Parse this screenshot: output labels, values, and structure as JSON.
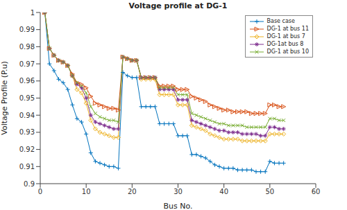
{
  "chart_data": {
    "type": "line",
    "title": "Voltage profile at DG-1",
    "x_label": "Bus No.",
    "y_label": "Voltage Profile (P.u)",
    "x": [
      1,
      2,
      3,
      4,
      5,
      6,
      7,
      8,
      9,
      10,
      11,
      12,
      13,
      14,
      15,
      16,
      17,
      18,
      19,
      20,
      21,
      22,
      23,
      24,
      25,
      26,
      27,
      28,
      29,
      30,
      31,
      32,
      33,
      34,
      35,
      36,
      37,
      38,
      39,
      40,
      41,
      42,
      43,
      44,
      45,
      46,
      47,
      48,
      49,
      50,
      51,
      52,
      53
    ],
    "xlim": [
      0,
      60
    ],
    "xticks": [
      0,
      10,
      20,
      30,
      40,
      50,
      60
    ],
    "ylim": [
      0.9,
      1
    ],
    "yticks": [
      0.9,
      0.91,
      0.92,
      0.93,
      0.94,
      0.95,
      0.96,
      0.97,
      0.98,
      0.99,
      1
    ],
    "grid": false,
    "legend": "upper right",
    "series": [
      {
        "name": "Base case",
        "color": "#0072BD",
        "marker": "plus",
        "values": [
          1.0,
          0.97,
          0.966,
          0.961,
          0.959,
          0.955,
          0.946,
          0.938,
          0.936,
          0.929,
          0.918,
          0.913,
          0.912,
          0.911,
          0.91,
          0.91,
          0.909,
          0.965,
          0.963,
          0.962,
          0.962,
          0.945,
          0.945,
          0.945,
          0.945,
          0.935,
          0.935,
          0.935,
          0.935,
          0.928,
          0.928,
          0.928,
          0.917,
          0.917,
          0.916,
          0.915,
          0.913,
          0.911,
          0.91,
          0.909,
          0.909,
          0.909,
          0.908,
          0.908,
          0.908,
          0.908,
          0.907,
          0.907,
          0.907,
          0.913,
          0.912,
          0.912,
          0.912
        ]
      },
      {
        "name": "DG-1 at bus 11",
        "color": "#D95319",
        "marker": "triangle",
        "values": [
          1.0,
          0.979,
          0.975,
          0.972,
          0.971,
          0.969,
          0.964,
          0.959,
          0.958,
          0.956,
          0.951,
          0.947,
          0.946,
          0.945,
          0.944,
          0.944,
          0.943,
          0.974,
          0.973,
          0.972,
          0.972,
          0.962,
          0.962,
          0.962,
          0.962,
          0.957,
          0.957,
          0.957,
          0.957,
          0.955,
          0.955,
          0.955,
          0.951,
          0.95,
          0.949,
          0.948,
          0.946,
          0.945,
          0.944,
          0.943,
          0.943,
          0.942,
          0.942,
          0.942,
          0.942,
          0.941,
          0.941,
          0.941,
          0.941,
          0.946,
          0.946,
          0.945,
          0.945
        ]
      },
      {
        "name": "DG-1 at bus 7",
        "color": "#EDB120",
        "marker": "diamond",
        "values": [
          1.0,
          0.979,
          0.975,
          0.972,
          0.971,
          0.969,
          0.963,
          0.955,
          0.953,
          0.947,
          0.937,
          0.932,
          0.93,
          0.929,
          0.928,
          0.927,
          0.927,
          0.974,
          0.973,
          0.972,
          0.972,
          0.961,
          0.961,
          0.961,
          0.961,
          0.952,
          0.952,
          0.952,
          0.952,
          0.946,
          0.946,
          0.946,
          0.934,
          0.933,
          0.932,
          0.931,
          0.929,
          0.928,
          0.927,
          0.926,
          0.926,
          0.926,
          0.926,
          0.925,
          0.925,
          0.925,
          0.925,
          0.925,
          0.925,
          0.929,
          0.929,
          0.929,
          0.929
        ]
      },
      {
        "name": "DG-1at bus 8",
        "color": "#7E2F8E",
        "marker": "star",
        "values": [
          1.0,
          0.979,
          0.975,
          0.972,
          0.971,
          0.969,
          0.963,
          0.958,
          0.956,
          0.95,
          0.94,
          0.936,
          0.935,
          0.934,
          0.933,
          0.932,
          0.932,
          0.974,
          0.973,
          0.972,
          0.972,
          0.962,
          0.962,
          0.962,
          0.962,
          0.955,
          0.955,
          0.955,
          0.955,
          0.949,
          0.949,
          0.949,
          0.937,
          0.936,
          0.935,
          0.934,
          0.933,
          0.932,
          0.931,
          0.931,
          0.93,
          0.93,
          0.93,
          0.929,
          0.929,
          0.929,
          0.929,
          0.928,
          0.928,
          0.933,
          0.933,
          0.932,
          0.932
        ]
      },
      {
        "name": "DG-1 at bus 10",
        "color": "#77AC30",
        "marker": "x",
        "values": [
          1.0,
          0.979,
          0.975,
          0.972,
          0.971,
          0.969,
          0.963,
          0.959,
          0.957,
          0.953,
          0.945,
          0.941,
          0.939,
          0.938,
          0.937,
          0.937,
          0.936,
          0.974,
          0.973,
          0.972,
          0.972,
          0.962,
          0.962,
          0.962,
          0.962,
          0.956,
          0.956,
          0.956,
          0.956,
          0.952,
          0.952,
          0.952,
          0.941,
          0.94,
          0.939,
          0.938,
          0.937,
          0.936,
          0.935,
          0.935,
          0.934,
          0.934,
          0.934,
          0.934,
          0.933,
          0.933,
          0.933,
          0.933,
          0.933,
          0.938,
          0.938,
          0.937,
          0.937
        ]
      }
    ]
  }
}
